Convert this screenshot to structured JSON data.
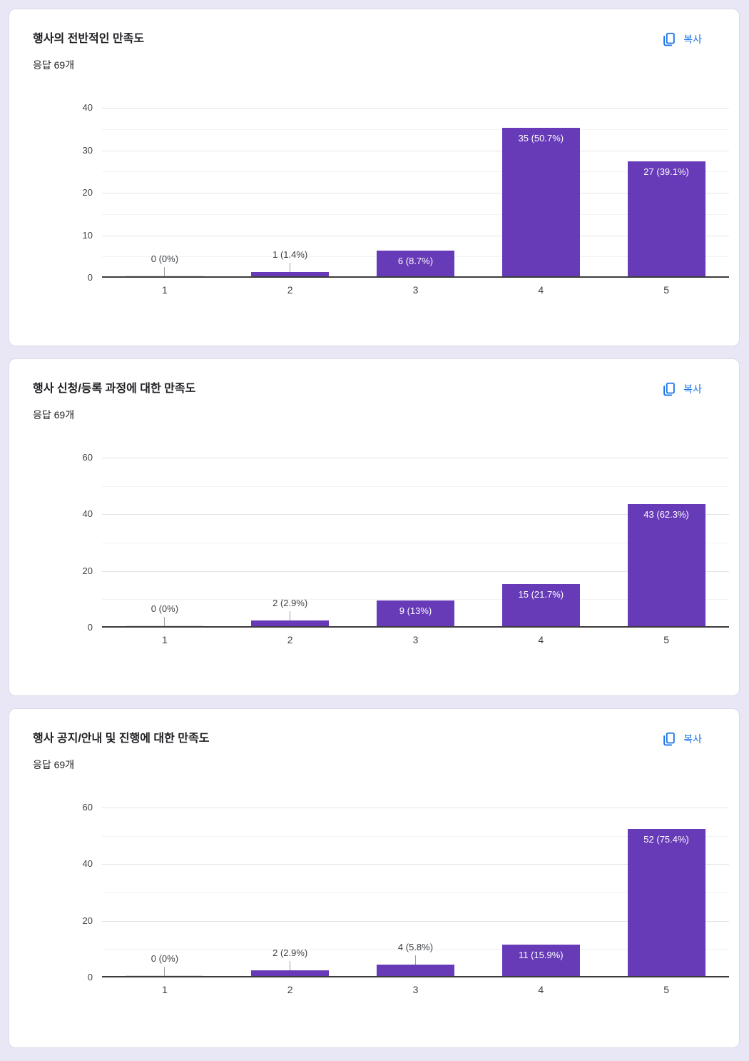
{
  "copy_label": "복사",
  "colors": {
    "bar": "#673ab7",
    "zero_bar_stub": "#dedede",
    "accent_blue": "#1a73e8",
    "page_background": "#e9e6f5",
    "baseline": "#3b3b3b",
    "gridline_major": "#e4e4e4",
    "gridline_minor": "#f2f2f2"
  },
  "cards": [
    {
      "title": "행사의 전반적인 만족도",
      "responses_label": "응답 69개"
    },
    {
      "title": "행사 신청/등록 과정에 대한 만족도",
      "responses_label": "응답 69개"
    },
    {
      "title": "행사 공지/안내 및 진행에 대한 만족도",
      "responses_label": "응답 69개"
    }
  ],
  "chart_data": [
    {
      "type": "bar",
      "title": "행사의 전반적인 만족도",
      "responses": 69,
      "categories": [
        "1",
        "2",
        "3",
        "4",
        "5"
      ],
      "values": [
        0,
        1,
        6,
        35,
        27
      ],
      "value_labels": [
        "0 (0%)",
        "1 (1.4%)",
        "6 (8.7%)",
        "35 (50.7%)",
        "27 (39.1%)"
      ],
      "xlabel": "",
      "ylabel": "",
      "ylim": [
        0,
        40
      ],
      "yticks": [
        0,
        10,
        20,
        30,
        40
      ],
      "minor_ticks": [
        5,
        15,
        25,
        35
      ],
      "grid": "horizontal",
      "legend": "none"
    },
    {
      "type": "bar",
      "title": "행사 신청/등록 과정에 대한 만족도",
      "responses": 69,
      "categories": [
        "1",
        "2",
        "3",
        "4",
        "5"
      ],
      "values": [
        0,
        2,
        9,
        15,
        43
      ],
      "value_labels": [
        "0 (0%)",
        "2 (2.9%)",
        "9 (13%)",
        "15 (21.7%)",
        "43 (62.3%)"
      ],
      "xlabel": "",
      "ylabel": "",
      "ylim": [
        0,
        60
      ],
      "yticks": [
        0,
        20,
        40,
        60
      ],
      "minor_ticks": [
        10,
        30,
        50
      ],
      "grid": "horizontal",
      "legend": "none"
    },
    {
      "type": "bar",
      "title": "행사 공지/안내 및 진행에 대한 만족도",
      "responses": 69,
      "categories": [
        "1",
        "2",
        "3",
        "4",
        "5"
      ],
      "values": [
        0,
        2,
        4,
        11,
        52
      ],
      "value_labels": [
        "0 (0%)",
        "2 (2.9%)",
        "4 (5.8%)",
        "11 (15.9%)",
        "52 (75.4%)"
      ],
      "xlabel": "",
      "ylabel": "",
      "ylim": [
        0,
        60
      ],
      "yticks": [
        0,
        20,
        40,
        60
      ],
      "minor_ticks": [
        10,
        30,
        50
      ],
      "grid": "horizontal",
      "legend": "none"
    }
  ]
}
